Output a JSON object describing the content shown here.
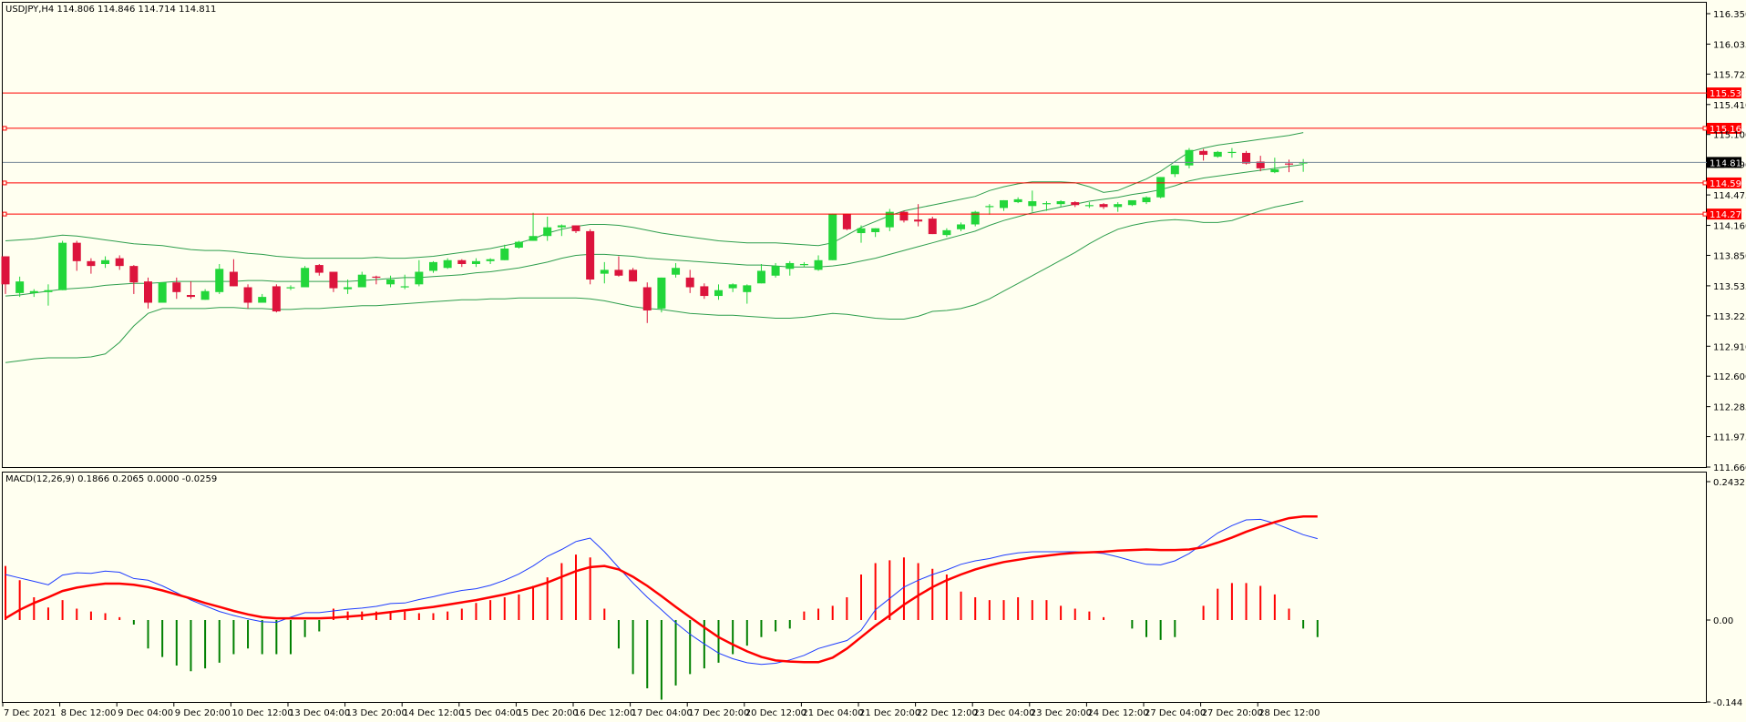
{
  "header": {
    "main_info": "USDJPY,H4  114.806 114.846 114.714 114.811",
    "macd_info": "MACD(12,26,9) 0.1866 0.2065 0.0000 -0.0259"
  },
  "colors": {
    "background": "#fffff0",
    "bull": "#22d63a",
    "bear": "#dc143c",
    "bands": "#2e9e4d",
    "level_lines": "#ff0000",
    "current_price_line": "#778899",
    "macd_pos": "#ff0000",
    "macd_neg": "#008000",
    "macd_line": "#1e3cff",
    "signal_line": "#ff0000"
  },
  "price_axis": {
    "ticks": [
      "116.350",
      "116.035",
      "115.725",
      "115.410",
      "115.100",
      "114.790",
      "114.475",
      "114.160",
      "113.850",
      "113.535",
      "113.225",
      "112.910",
      "112.600",
      "112.285",
      "111.975",
      "111.660"
    ],
    "current": "114.811",
    "levels": [
      "115.530",
      "115.164",
      "114.599",
      "114.277"
    ]
  },
  "macd_axis": {
    "ticks": [
      "0.2432",
      "0.00",
      "-0.144"
    ]
  },
  "time_axis": {
    "labels": [
      "7 Dec 2021",
      "8 Dec 12:00",
      "9 Dec 04:00",
      "9 Dec 20:00",
      "10 Dec 12:00",
      "13 Dec 04:00",
      "13 Dec 20:00",
      "14 Dec 12:00",
      "15 Dec 04:00",
      "15 Dec 20:00",
      "16 Dec 12:00",
      "17 Dec 04:00",
      "17 Dec 20:00",
      "20 Dec 12:00",
      "21 Dec 04:00",
      "21 Dec 20:00",
      "22 Dec 12:00",
      "23 Dec 04:00",
      "23 Dec 20:00",
      "24 Dec 12:00",
      "27 Dec 04:00",
      "27 Dec 20:00",
      "28 Dec 12:00"
    ]
  },
  "chart_data": {
    "type": "candlestick",
    "symbol": "USDJPY",
    "timeframe": "H4",
    "ylim": [
      111.66,
      116.35
    ],
    "candles": [
      [
        113.84,
        113.84,
        113.45,
        113.55
      ],
      [
        113.46,
        113.63,
        113.42,
        113.58
      ],
      [
        113.46,
        113.5,
        113.42,
        113.48
      ],
      [
        113.47,
        113.55,
        113.33,
        113.49
      ],
      [
        113.49,
        114.0,
        113.49,
        113.98
      ],
      [
        113.98,
        114.0,
        113.69,
        113.79
      ],
      [
        113.79,
        113.82,
        113.66,
        113.74
      ],
      [
        113.76,
        113.84,
        113.72,
        113.8
      ],
      [
        113.82,
        113.85,
        113.7,
        113.74
      ],
      [
        113.74,
        113.75,
        113.45,
        113.57
      ],
      [
        113.58,
        113.62,
        113.3,
        113.36
      ],
      [
        113.36,
        113.57,
        113.36,
        113.57
      ],
      [
        113.57,
        113.62,
        113.4,
        113.47
      ],
      [
        113.44,
        113.58,
        113.4,
        113.42
      ],
      [
        113.39,
        113.5,
        113.39,
        113.48
      ],
      [
        113.47,
        113.76,
        113.45,
        113.71
      ],
      [
        113.68,
        113.81,
        113.53,
        113.53
      ],
      [
        113.52,
        113.55,
        113.3,
        113.36
      ],
      [
        113.36,
        113.45,
        113.36,
        113.42
      ],
      [
        113.53,
        113.55,
        113.26,
        113.27
      ],
      [
        113.51,
        113.54,
        113.49,
        113.52
      ],
      [
        113.52,
        113.74,
        113.52,
        113.72
      ],
      [
        113.75,
        113.76,
        113.64,
        113.67
      ],
      [
        113.68,
        113.68,
        113.47,
        113.51
      ],
      [
        113.5,
        113.6,
        113.45,
        113.52
      ],
      [
        113.52,
        113.68,
        113.52,
        113.65
      ],
      [
        113.63,
        113.64,
        113.55,
        113.62
      ],
      [
        113.55,
        113.64,
        113.52,
        113.6
      ],
      [
        113.52,
        113.65,
        113.5,
        113.53
      ],
      [
        113.55,
        113.8,
        113.53,
        113.68
      ],
      [
        113.69,
        113.79,
        113.67,
        113.78
      ],
      [
        113.72,
        113.82,
        113.71,
        113.8
      ],
      [
        113.8,
        113.81,
        113.73,
        113.76
      ],
      [
        113.76,
        113.82,
        113.73,
        113.79
      ],
      [
        113.79,
        113.82,
        113.76,
        113.81
      ],
      [
        113.8,
        113.96,
        113.8,
        113.92
      ],
      [
        113.93,
        114.0,
        113.92,
        113.99
      ],
      [
        114.0,
        114.29,
        114.0,
        114.05
      ],
      [
        114.05,
        114.25,
        114.0,
        114.14
      ],
      [
        114.14,
        114.17,
        114.05,
        114.16
      ],
      [
        114.16,
        114.16,
        114.08,
        114.1
      ],
      [
        114.1,
        114.12,
        113.55,
        113.6
      ],
      [
        113.66,
        113.78,
        113.56,
        113.7
      ],
      [
        113.7,
        113.84,
        113.63,
        113.64
      ],
      [
        113.7,
        113.72,
        113.58,
        113.58
      ],
      [
        113.52,
        113.57,
        113.15,
        113.28
      ],
      [
        113.3,
        113.62,
        113.26,
        113.62
      ],
      [
        113.65,
        113.77,
        113.62,
        113.72
      ],
      [
        113.62,
        113.7,
        113.46,
        113.52
      ],
      [
        113.53,
        113.56,
        113.4,
        113.43
      ],
      [
        113.43,
        113.55,
        113.39,
        113.49
      ],
      [
        113.51,
        113.56,
        113.47,
        113.55
      ],
      [
        113.47,
        113.55,
        113.35,
        113.54
      ],
      [
        113.56,
        113.76,
        113.56,
        113.69
      ],
      [
        113.64,
        113.77,
        113.62,
        113.74
      ],
      [
        113.71,
        113.79,
        113.64,
        113.77
      ],
      [
        113.76,
        113.78,
        113.73,
        113.76
      ],
      [
        113.7,
        113.85,
        113.69,
        113.8
      ],
      [
        113.8,
        114.28,
        113.8,
        114.28
      ],
      [
        114.28,
        114.28,
        114.11,
        114.12
      ],
      [
        114.08,
        114.16,
        113.98,
        114.13
      ],
      [
        114.09,
        114.13,
        114.04,
        114.13
      ],
      [
        114.14,
        114.33,
        114.1,
        114.3
      ],
      [
        114.3,
        114.31,
        114.19,
        114.21
      ],
      [
        114.22,
        114.38,
        114.15,
        114.2
      ],
      [
        114.23,
        114.25,
        114.07,
        114.07
      ],
      [
        114.06,
        114.13,
        114.04,
        114.11
      ],
      [
        114.12,
        114.19,
        114.1,
        114.17
      ],
      [
        114.17,
        114.31,
        114.15,
        114.3
      ],
      [
        114.36,
        114.38,
        114.27,
        114.36
      ],
      [
        114.34,
        114.42,
        114.31,
        114.42
      ],
      [
        114.4,
        114.45,
        114.39,
        114.43
      ],
      [
        114.36,
        114.52,
        114.3,
        114.41
      ],
      [
        114.38,
        114.41,
        114.31,
        114.39
      ],
      [
        114.38,
        114.42,
        114.35,
        114.41
      ],
      [
        114.4,
        114.41,
        114.35,
        114.37
      ],
      [
        114.36,
        114.4,
        114.34,
        114.37
      ],
      [
        114.38,
        114.39,
        114.33,
        114.35
      ],
      [
        114.35,
        114.4,
        114.3,
        114.38
      ],
      [
        114.37,
        114.41,
        114.36,
        114.42
      ],
      [
        114.4,
        114.46,
        114.38,
        114.45
      ],
      [
        114.45,
        114.66,
        114.44,
        114.66
      ],
      [
        114.69,
        114.78,
        114.66,
        114.78
      ],
      [
        114.78,
        114.96,
        114.75,
        114.94
      ],
      [
        114.93,
        114.95,
        114.83,
        114.89
      ],
      [
        114.87,
        114.93,
        114.86,
        114.92
      ],
      [
        114.92,
        114.96,
        114.86,
        114.92
      ],
      [
        114.91,
        114.93,
        114.79,
        114.8
      ],
      [
        114.82,
        114.88,
        114.72,
        114.75
      ],
      [
        114.71,
        114.86,
        114.7,
        114.74
      ],
      [
        114.8,
        114.84,
        114.71,
        114.79
      ],
      [
        114.806,
        114.846,
        114.714,
        114.811
      ]
    ],
    "bollinger": {
      "upper": [
        114.0,
        114.01,
        114.02,
        114.04,
        114.06,
        114.05,
        114.03,
        114.01,
        113.99,
        113.97,
        113.96,
        113.95,
        113.93,
        113.91,
        113.9,
        113.9,
        113.89,
        113.87,
        113.86,
        113.84,
        113.83,
        113.82,
        113.82,
        113.82,
        113.82,
        113.82,
        113.83,
        113.82,
        113.82,
        113.83,
        113.84,
        113.86,
        113.88,
        113.9,
        113.92,
        113.95,
        113.98,
        114.02,
        114.08,
        114.12,
        114.15,
        114.17,
        114.17,
        114.16,
        114.14,
        114.11,
        114.08,
        114.06,
        114.04,
        114.02,
        114.0,
        113.99,
        113.98,
        113.98,
        113.98,
        113.97,
        113.96,
        113.95,
        113.98,
        114.06,
        114.14,
        114.2,
        114.26,
        114.31,
        114.34,
        114.37,
        114.4,
        114.43,
        114.46,
        114.52,
        114.56,
        114.59,
        114.61,
        114.61,
        114.61,
        114.6,
        114.56,
        114.5,
        114.52,
        114.58,
        114.64,
        114.72,
        114.82,
        114.92,
        114.96,
        114.99,
        115.01,
        115.03,
        115.05,
        115.07,
        115.09,
        115.12
      ],
      "middle": [
        113.43,
        113.44,
        113.46,
        113.48,
        113.5,
        113.51,
        113.52,
        113.54,
        113.55,
        113.56,
        113.56,
        113.57,
        113.58,
        113.58,
        113.58,
        113.58,
        113.58,
        113.59,
        113.59,
        113.58,
        113.58,
        113.58,
        113.58,
        113.58,
        113.58,
        113.59,
        113.6,
        113.61,
        113.62,
        113.62,
        113.63,
        113.64,
        113.65,
        113.67,
        113.68,
        113.7,
        113.72,
        113.75,
        113.78,
        113.82,
        113.85,
        113.86,
        113.86,
        113.85,
        113.84,
        113.82,
        113.81,
        113.8,
        113.79,
        113.78,
        113.77,
        113.76,
        113.75,
        113.75,
        113.74,
        113.73,
        113.73,
        113.73,
        113.74,
        113.76,
        113.79,
        113.82,
        113.86,
        113.9,
        113.94,
        113.98,
        114.02,
        114.06,
        114.1,
        114.16,
        114.21,
        114.25,
        114.29,
        114.32,
        114.35,
        114.38,
        114.41,
        114.43,
        114.45,
        114.48,
        114.5,
        114.53,
        114.57,
        114.62,
        114.65,
        114.67,
        114.69,
        114.71,
        114.73,
        114.75,
        114.77,
        114.79
      ],
      "lower": [
        112.74,
        112.76,
        112.78,
        112.79,
        112.79,
        112.79,
        112.8,
        112.83,
        112.95,
        113.12,
        113.25,
        113.3,
        113.3,
        113.3,
        113.3,
        113.31,
        113.31,
        113.3,
        113.3,
        113.29,
        113.29,
        113.3,
        113.3,
        113.31,
        113.32,
        113.33,
        113.33,
        113.34,
        113.35,
        113.36,
        113.37,
        113.38,
        113.39,
        113.39,
        113.4,
        113.4,
        113.41,
        113.41,
        113.41,
        113.41,
        113.41,
        113.4,
        113.38,
        113.35,
        113.32,
        113.3,
        113.29,
        113.27,
        113.25,
        113.24,
        113.23,
        113.23,
        113.22,
        113.21,
        113.2,
        113.2,
        113.21,
        113.23,
        113.25,
        113.24,
        113.22,
        113.2,
        113.19,
        113.19,
        113.22,
        113.27,
        113.28,
        113.3,
        113.34,
        113.4,
        113.48,
        113.56,
        113.64,
        113.72,
        113.8,
        113.88,
        113.97,
        114.05,
        114.12,
        114.16,
        114.19,
        114.21,
        114.22,
        114.21,
        114.19,
        114.19,
        114.21,
        114.26,
        114.31,
        114.35,
        114.38,
        114.41
      ]
    },
    "levels": [
      115.53,
      115.164,
      114.599,
      114.277
    ],
    "current_price": 114.811,
    "macd": {
      "name": "MACD(12,26,9)",
      "ylim": [
        -0.144,
        0.2432
      ],
      "histogram": [
        0.095,
        0.07,
        0.04,
        0.022,
        0.035,
        0.02,
        0.015,
        0.012,
        0.005,
        -0.008,
        -0.05,
        -0.065,
        -0.08,
        -0.09,
        -0.085,
        -0.075,
        -0.06,
        -0.05,
        -0.06,
        -0.06,
        -0.06,
        -0.03,
        -0.02,
        0.02,
        0.015,
        0.015,
        0.015,
        0.015,
        0.015,
        0.012,
        0.012,
        0.015,
        0.02,
        0.03,
        0.035,
        0.04,
        0.045,
        0.06,
        0.075,
        0.1,
        0.115,
        0.11,
        0.02,
        -0.05,
        -0.095,
        -0.12,
        -0.14,
        -0.115,
        -0.095,
        -0.085,
        -0.075,
        -0.06,
        -0.045,
        -0.03,
        -0.02,
        -0.015,
        0.015,
        0.02,
        0.025,
        0.04,
        0.08,
        0.1,
        0.105,
        0.11,
        0.1,
        0.09,
        0.08,
        0.05,
        0.04,
        0.035,
        0.035,
        0.04,
        0.035,
        0.035,
        0.025,
        0.02,
        0.015,
        0.005,
        0.0,
        -0.015,
        -0.03,
        -0.035,
        -0.03,
        0.0,
        0.025,
        0.055,
        0.065,
        0.065,
        0.06,
        0.045,
        0.02,
        -0.015,
        -0.03
      ],
      "macd_line": [
        0.08,
        0.074,
        0.068,
        0.062,
        0.079,
        0.083,
        0.082,
        0.086,
        0.084,
        0.073,
        0.07,
        0.06,
        0.048,
        0.035,
        0.025,
        0.015,
        0.008,
        0.002,
        -0.003,
        -0.004,
        0.005,
        0.013,
        0.013,
        0.016,
        0.019,
        0.021,
        0.024,
        0.029,
        0.03,
        0.036,
        0.041,
        0.047,
        0.052,
        0.055,
        0.061,
        0.07,
        0.081,
        0.095,
        0.112,
        0.124,
        0.138,
        0.144,
        0.12,
        0.092,
        0.065,
        0.04,
        0.018,
        -0.005,
        -0.025,
        -0.042,
        -0.058,
        -0.068,
        -0.075,
        -0.078,
        -0.076,
        -0.07,
        -0.062,
        -0.05,
        -0.043,
        -0.036,
        -0.018,
        0.018,
        0.038,
        0.058,
        0.07,
        0.08,
        0.088,
        0.098,
        0.104,
        0.108,
        0.114,
        0.118,
        0.12,
        0.12,
        0.12,
        0.12,
        0.119,
        0.117,
        0.111,
        0.104,
        0.098,
        0.097,
        0.104,
        0.117,
        0.135,
        0.153,
        0.166,
        0.176,
        0.177,
        0.17,
        0.16,
        0.15,
        0.143
      ],
      "signal_line": [
        0.003,
        0.018,
        0.03,
        0.04,
        0.051,
        0.057,
        0.061,
        0.064,
        0.064,
        0.062,
        0.058,
        0.052,
        0.045,
        0.038,
        0.03,
        0.023,
        0.016,
        0.01,
        0.005,
        0.003,
        0.003,
        0.003,
        0.003,
        0.004,
        0.006,
        0.008,
        0.011,
        0.014,
        0.017,
        0.02,
        0.023,
        0.027,
        0.031,
        0.035,
        0.04,
        0.045,
        0.051,
        0.058,
        0.066,
        0.076,
        0.086,
        0.093,
        0.095,
        0.089,
        0.076,
        0.06,
        0.042,
        0.023,
        0.005,
        -0.013,
        -0.03,
        -0.043,
        -0.055,
        -0.065,
        -0.071,
        -0.073,
        -0.074,
        -0.074,
        -0.066,
        -0.05,
        -0.03,
        -0.01,
        0.008,
        0.027,
        0.043,
        0.058,
        0.07,
        0.08,
        0.089,
        0.096,
        0.102,
        0.106,
        0.11,
        0.113,
        0.116,
        0.118,
        0.119,
        0.12,
        0.122,
        0.123,
        0.124,
        0.123,
        0.123,
        0.124,
        0.128,
        0.136,
        0.145,
        0.155,
        0.164,
        0.172,
        0.179,
        0.182,
        0.182
      ]
    }
  }
}
